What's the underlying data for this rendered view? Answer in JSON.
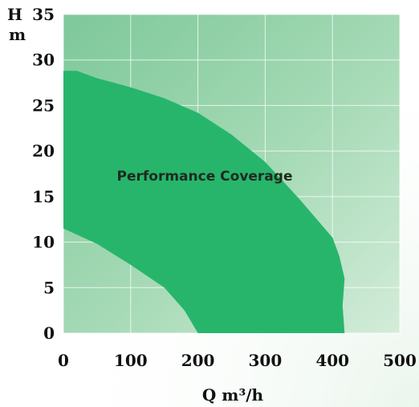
{
  "chart_data": {
    "type": "area",
    "title": "",
    "xlabel": "Q m³/h",
    "ylabel_top": "H",
    "ylabel_unit": "m",
    "xlim": [
      0,
      500
    ],
    "ylim": [
      0,
      35
    ],
    "x_ticks": [
      "0",
      "100",
      "200",
      "300",
      "400",
      "500"
    ],
    "y_ticks": [
      "0",
      "5",
      "10",
      "15",
      "20",
      "25",
      "30",
      "35"
    ],
    "grid": true,
    "legend": "none",
    "region_label": "Performance Coverage",
    "series": [
      {
        "name": "Performance Coverage",
        "polygon": [
          {
            "x": 0,
            "y": 11.5
          },
          {
            "x": 0,
            "y": 28.8
          },
          {
            "x": 20,
            "y": 28.8
          },
          {
            "x": 50,
            "y": 28.0
          },
          {
            "x": 100,
            "y": 27.0
          },
          {
            "x": 150,
            "y": 25.8
          },
          {
            "x": 200,
            "y": 24.2
          },
          {
            "x": 250,
            "y": 21.8
          },
          {
            "x": 300,
            "y": 18.8
          },
          {
            "x": 350,
            "y": 14.8
          },
          {
            "x": 400,
            "y": 10.5
          },
          {
            "x": 410,
            "y": 8.5
          },
          {
            "x": 418,
            "y": 6.0
          },
          {
            "x": 415,
            "y": 3.0
          },
          {
            "x": 418,
            "y": 0
          },
          {
            "x": 200,
            "y": 0
          },
          {
            "x": 180,
            "y": 2.5
          },
          {
            "x": 150,
            "y": 5.0
          },
          {
            "x": 100,
            "y": 7.5
          },
          {
            "x": 50,
            "y": 9.8
          }
        ]
      }
    ]
  },
  "colors": {
    "plot_bg": "#8fd0a6",
    "plot_bg_light": "#b7e2c5",
    "grid": "#ffffff",
    "coverage_fill": "#27b56c",
    "text": "#111111"
  }
}
